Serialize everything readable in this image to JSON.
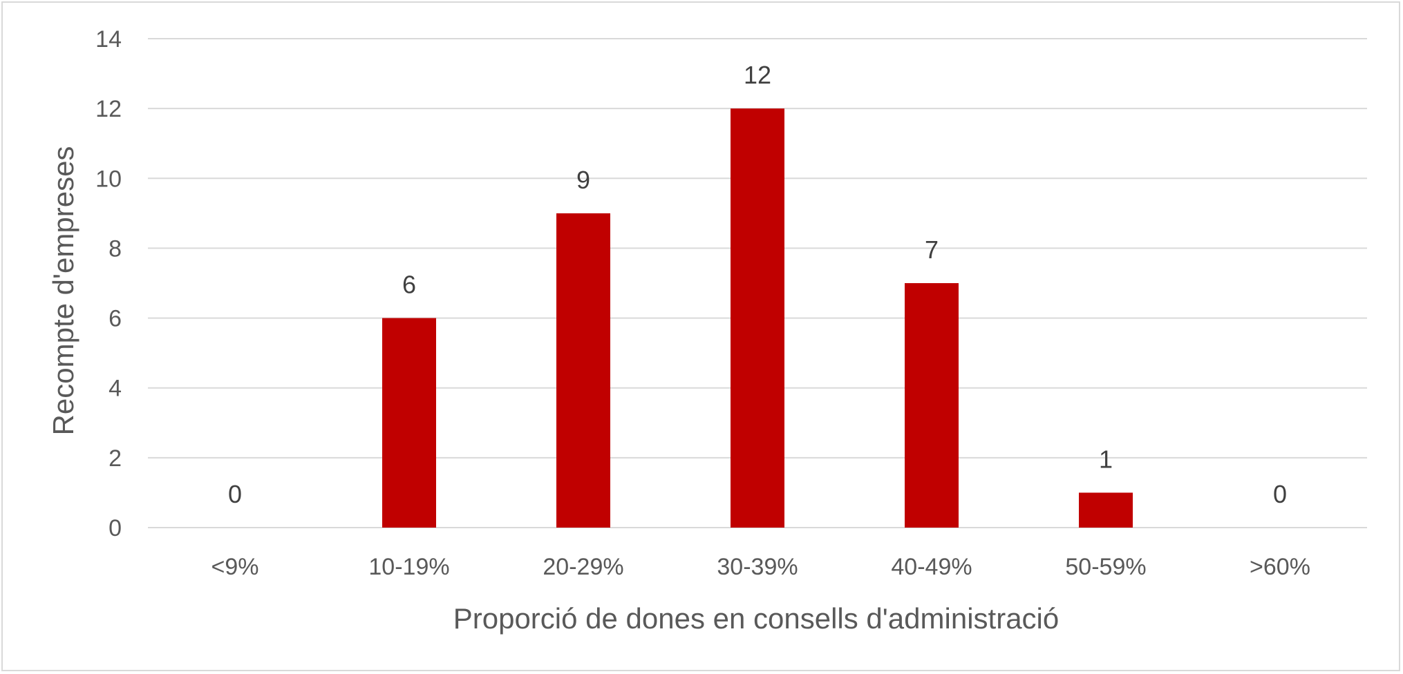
{
  "chart_data": {
    "type": "bar",
    "title": "",
    "xlabel": "Proporció de dones en consells d'administració",
    "ylabel": "Recompte d'empreses",
    "categories": [
      "<9%",
      "10-19%",
      "20-29%",
      "30-39%",
      "40-49%",
      "50-59%",
      ">60%"
    ],
    "values": [
      0,
      6,
      9,
      12,
      7,
      1,
      0
    ],
    "ylim": [
      0,
      14
    ],
    "yticks": [
      0,
      2,
      4,
      6,
      8,
      10,
      12,
      14
    ],
    "grid": true,
    "legend": "none",
    "bar_color": "#c00000",
    "data_labels": true
  }
}
